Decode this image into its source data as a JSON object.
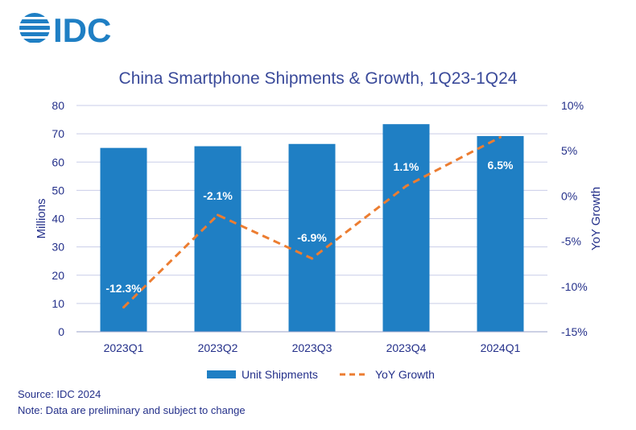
{
  "brand": {
    "logo_text": "IDC",
    "logo_color": "#1f7fc4"
  },
  "footer": {
    "source": "Source: IDC 2024",
    "note": "Note: Data are preliminary and subject to change"
  },
  "colors": {
    "bar": "#1f7fc4",
    "line": "#ec7d31",
    "axis_text": "#24308a",
    "title": "#3a4a9a",
    "grid": "#c9cde8",
    "label_text": "#ffffff"
  },
  "chart_data": {
    "type": "bar",
    "title": "China Smartphone Shipments & Growth, 1Q23-1Q24",
    "categories": [
      "2023Q1",
      "2023Q2",
      "2023Q3",
      "2023Q4",
      "2024Q1"
    ],
    "series": [
      {
        "name": "Unit Shipments",
        "type": "bar",
        "axis": "left",
        "values": [
          65.0,
          65.6,
          66.4,
          73.4,
          69.2
        ]
      },
      {
        "name": "YoY Growth",
        "type": "line",
        "style": "dashed",
        "axis": "right",
        "values": [
          -12.3,
          -2.1,
          -6.9,
          1.1,
          6.5
        ]
      }
    ],
    "data_labels": [
      "-12.3%",
      "-2.1%",
      "-6.9%",
      "1.1%",
      "6.5%"
    ],
    "ylabel": "Millions",
    "ylim": [
      0,
      80
    ],
    "yticks": [
      "0",
      "10",
      "20",
      "30",
      "40",
      "50",
      "60",
      "70",
      "80"
    ],
    "y2label": "YoY Growth",
    "y2lim": [
      -15,
      10
    ],
    "y2ticks": [
      "-15%",
      "-10%",
      "-5%",
      "0%",
      "5%",
      "10%"
    ],
    "grid": true,
    "legend": "bottom"
  }
}
